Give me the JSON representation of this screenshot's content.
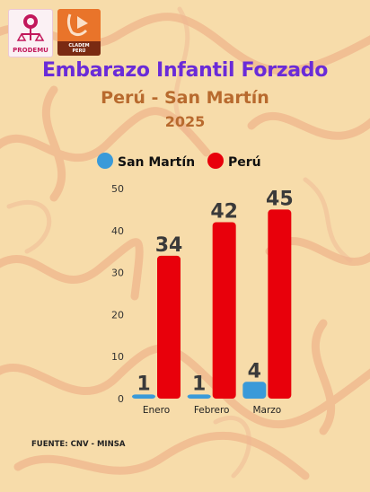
{
  "logos": {
    "prodemu": "PRODEMU",
    "cladem_line1": "CLADEM",
    "cladem_line2": "PERÚ"
  },
  "header": {
    "title": "Embarazo Infantil Forzado",
    "subtitle": "Perú - San Martín",
    "year": "2025"
  },
  "source": "FUENTE: CNV - MINSA",
  "colors": {
    "san_martin": "#3a9ad9",
    "peru": "#e8000b",
    "title": "#6a2bd8",
    "subtitle": "#b86a2e",
    "background": "#f7dcaa"
  },
  "chart_data": {
    "type": "bar",
    "categories": [
      "Enero",
      "Febrero",
      "Marzo"
    ],
    "series": [
      {
        "name": "San Martín",
        "values": [
          1,
          1,
          4
        ]
      },
      {
        "name": "Perú",
        "values": [
          34,
          42,
          45
        ]
      }
    ],
    "ylim": [
      0,
      50
    ],
    "yticks": [
      0,
      10,
      20,
      30,
      40,
      50
    ],
    "legend": "top-left",
    "grid": false
  }
}
